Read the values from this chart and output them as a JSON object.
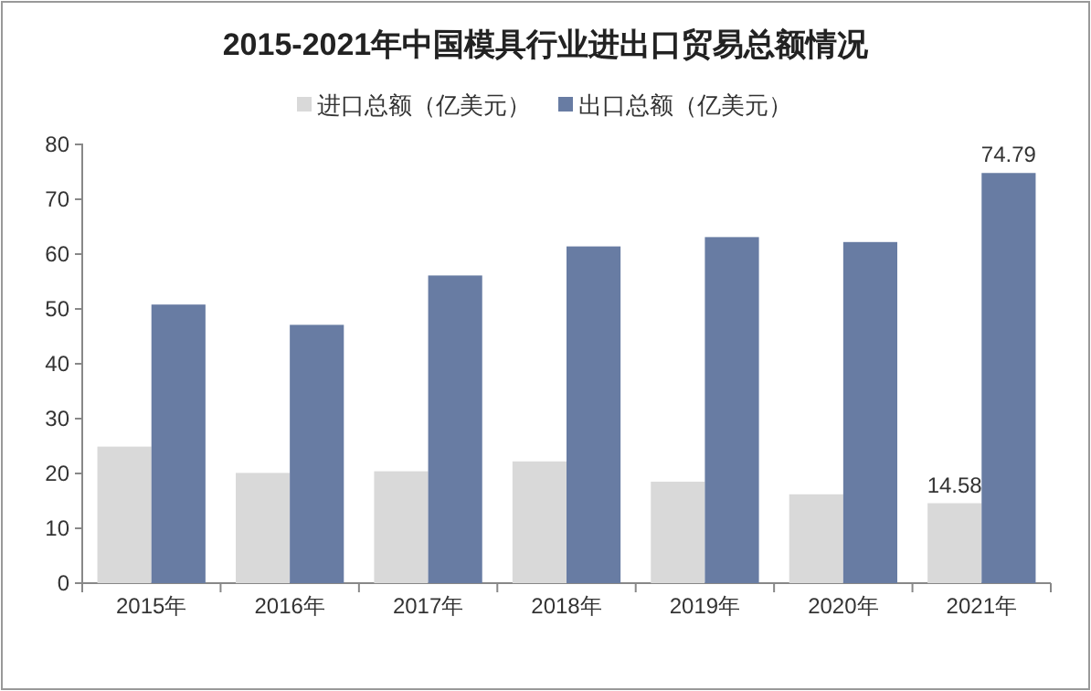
{
  "chart_data": {
    "type": "bar",
    "title": "2015-2021年中国模具行业进出口贸易总额情况",
    "categories": [
      "2015年",
      "2016年",
      "2017年",
      "2018年",
      "2019年",
      "2020年",
      "2021年"
    ],
    "series": [
      {
        "name": "进口总额（亿美元）",
        "color": "#d9d9d9",
        "values": [
          24.9,
          20.1,
          20.4,
          22.2,
          18.5,
          16.2,
          14.58
        ],
        "value_labels": [
          null,
          null,
          null,
          null,
          null,
          null,
          "14.58"
        ]
      },
      {
        "name": "出口总额（亿美元）",
        "color": "#687ca3",
        "values": [
          50.8,
          47.1,
          56.1,
          61.4,
          63.1,
          62.2,
          74.79
        ],
        "value_labels": [
          null,
          null,
          null,
          null,
          null,
          null,
          "74.79"
        ]
      }
    ],
    "ylim": [
      0,
      80
    ],
    "yticks": [
      0,
      10,
      20,
      30,
      40,
      50,
      60,
      70,
      80
    ],
    "grid": false,
    "legend": "top"
  }
}
